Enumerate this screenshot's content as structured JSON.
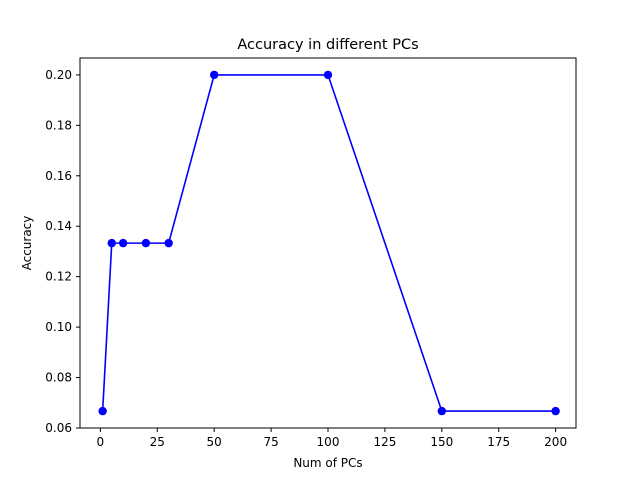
{
  "chart_data": {
    "type": "line",
    "title": "Accuracy in different PCs",
    "xlabel": "Num of PCs",
    "ylabel": "Accuracy",
    "xlim": [
      -8.95,
      208.95
    ],
    "ylim": [
      0.06,
      0.2067
    ],
    "xticks": [
      0,
      25,
      50,
      75,
      100,
      125,
      150,
      175,
      200
    ],
    "xtick_labels": [
      "0",
      "25",
      "50",
      "75",
      "100",
      "125",
      "150",
      "175",
      "200"
    ],
    "yticks": [
      0.06,
      0.08,
      0.1,
      0.12,
      0.14,
      0.16,
      0.18,
      0.2
    ],
    "ytick_labels": [
      "0.06",
      "0.08",
      "0.10",
      "0.12",
      "0.14",
      "0.16",
      "0.18",
      "0.20"
    ],
    "grid": false,
    "series": [
      {
        "color": "#0000ff",
        "marker": "circle",
        "x": [
          1,
          5,
          10,
          20,
          30,
          50,
          100,
          150,
          200
        ],
        "y": [
          0.0667,
          0.1333,
          0.1333,
          0.1333,
          0.1333,
          0.2,
          0.2,
          0.0667,
          0.0667
        ]
      }
    ]
  }
}
